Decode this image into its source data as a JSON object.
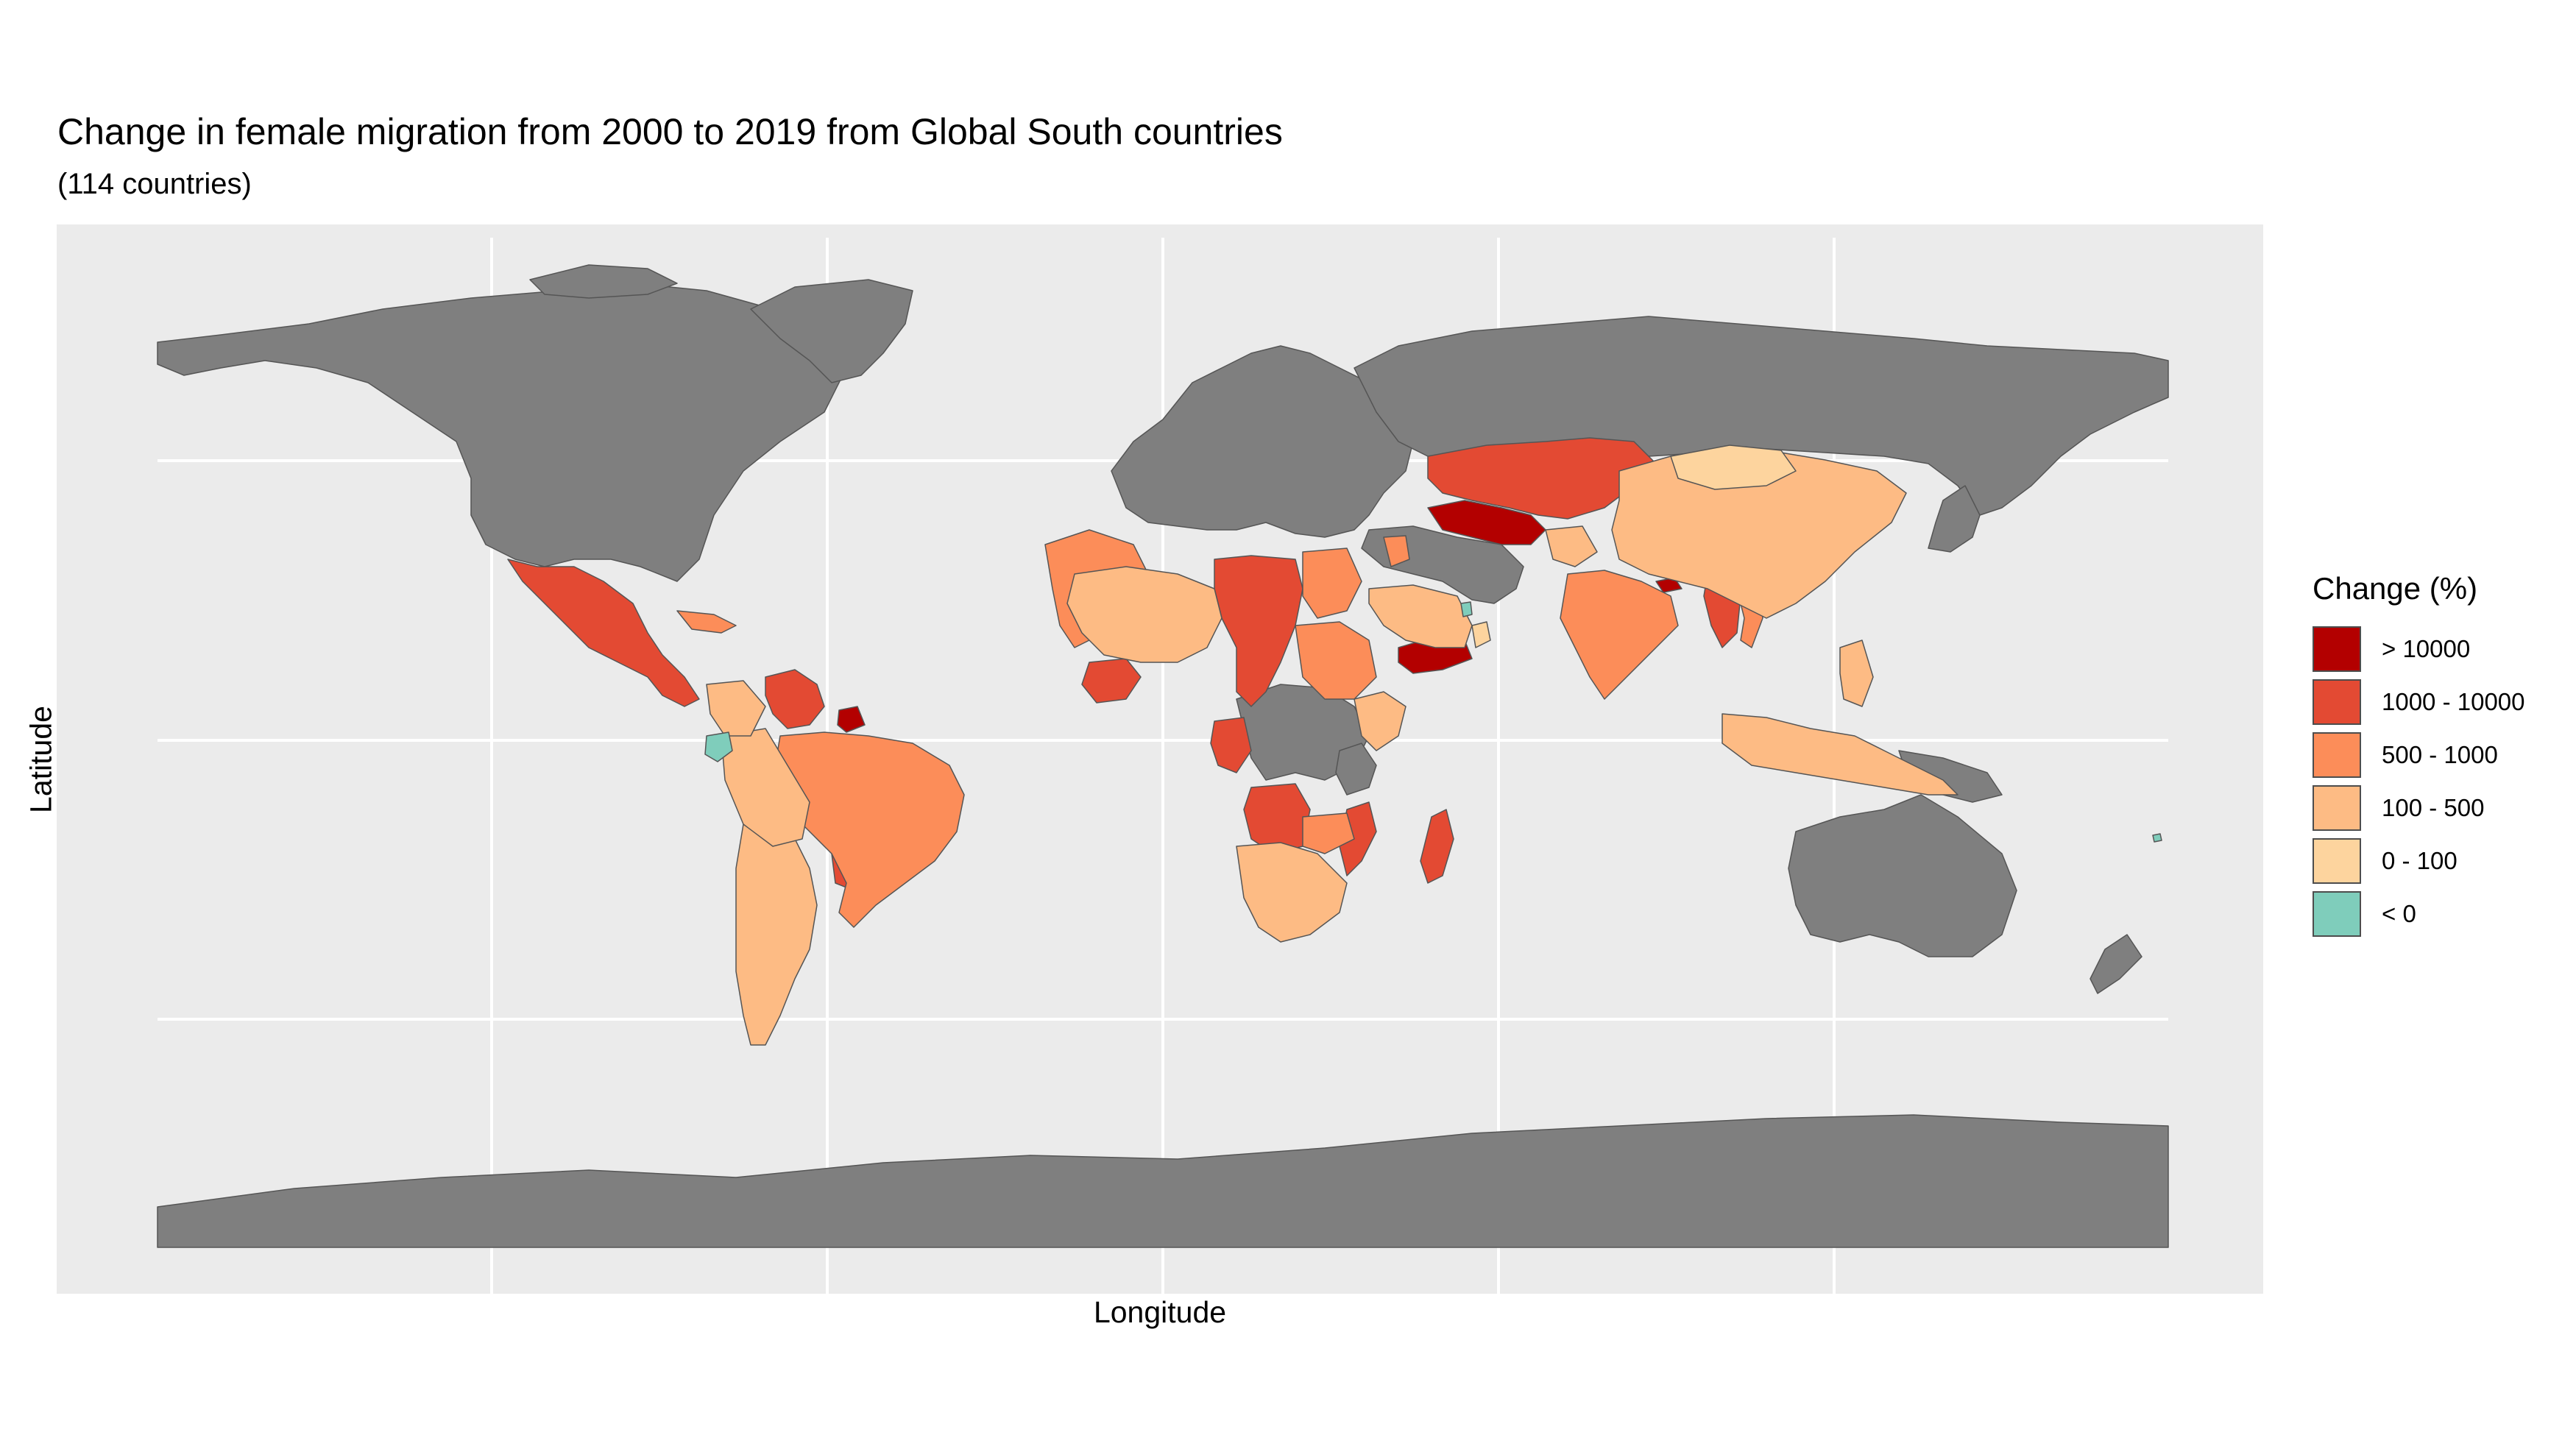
{
  "title": "Change in female migration from 2000 to 2019 from Global South countries",
  "subtitle": "(114 countries)",
  "axes": {
    "xlabel": "Longitude",
    "ylabel": "Latitude"
  },
  "legend": {
    "title": "Change (%)",
    "items": [
      {
        "label": "> 10000",
        "color": "#b30000"
      },
      {
        "label": "1000 - 10000",
        "color": "#e34a33"
      },
      {
        "label": "500 - 1000",
        "color": "#fc8d59"
      },
      {
        "label": "100 - 500",
        "color": "#fdbb84"
      },
      {
        "label": "0 - 100",
        "color": "#fdd49e"
      },
      {
        "label": "< 0",
        "color": "#7fcdbb"
      }
    ]
  },
  "map": {
    "background_color": "#ebebeb",
    "no_data_color": "#7f7f7f",
    "gridlines": true
  }
}
